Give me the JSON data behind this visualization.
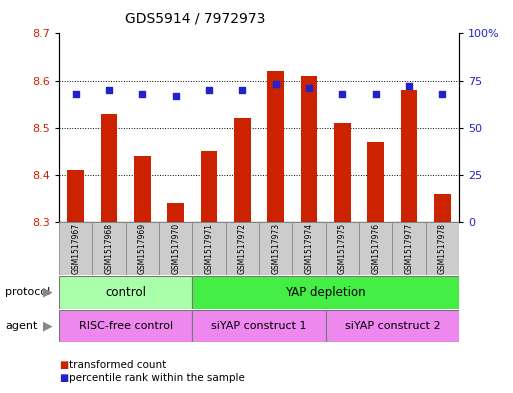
{
  "title": "GDS5914 / 7972973",
  "samples": [
    "GSM1517967",
    "GSM1517968",
    "GSM1517969",
    "GSM1517970",
    "GSM1517971",
    "GSM1517972",
    "GSM1517973",
    "GSM1517974",
    "GSM1517975",
    "GSM1517976",
    "GSM1517977",
    "GSM1517978"
  ],
  "transformed_counts": [
    8.41,
    8.53,
    8.44,
    8.34,
    8.45,
    8.52,
    8.62,
    8.61,
    8.51,
    8.47,
    8.58,
    8.36
  ],
  "percentile_ranks": [
    68,
    70,
    68,
    67,
    70,
    70,
    73,
    71,
    68,
    68,
    72,
    68
  ],
  "ylim_left": [
    8.3,
    8.7
  ],
  "ylim_right": [
    0,
    100
  ],
  "yticks_left": [
    8.3,
    8.4,
    8.5,
    8.6,
    8.7
  ],
  "yticks_right": [
    0,
    25,
    50,
    75,
    100
  ],
  "ytick_labels_right": [
    "0",
    "25",
    "50",
    "75",
    "100%"
  ],
  "bar_color": "#cc2200",
  "dot_color": "#2222cc",
  "bar_bottom": 8.3,
  "grid_color": "#000000",
  "tick_label_color_left": "#cc2200",
  "tick_label_color_right": "#2222cc",
  "bg_color": "#ffffff",
  "plot_bg_color": "#ffffff",
  "sample_cell_color": "#cccccc",
  "sample_cell_edge": "#888888",
  "protocol_control_color": "#aaffaa",
  "protocol_yap_color": "#44ee44",
  "agent_color": "#ee88ee",
  "proto_label": "protocol",
  "agent_label": "agent",
  "legend_bar_label": "transformed count",
  "legend_dot_label": "percentile rank within the sample"
}
